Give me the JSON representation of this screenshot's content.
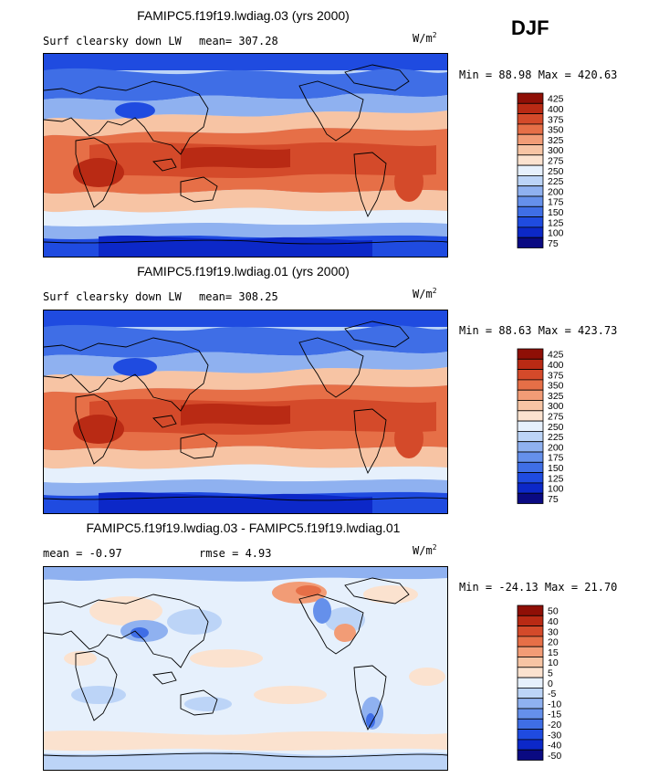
{
  "season": "DJF",
  "panels": [
    {
      "title": "FAMIPC5.f19f19.lwdiag.03 (yrs 2000)",
      "left_label": "Surf clearsky down LW",
      "mean_text": "mean= 307.28",
      "units": "W/m",
      "units_exp": "2",
      "minmax": "Min =  88.98 Max = 420.63"
    },
    {
      "title": "FAMIPC5.f19f19.lwdiag.01 (yrs 2000)",
      "left_label": "Surf clearsky down LW",
      "mean_text": "mean= 308.25",
      "units": "W/m",
      "units_exp": "2",
      "minmax": "Min =  88.63 Max = 423.73"
    },
    {
      "title": "FAMIPC5.f19f19.lwdiag.03 - FAMIPC5.f19f19.lwdiag.01",
      "left_label": "mean =  -0.97",
      "mean_text": "rmse =   4.93",
      "units": "W/m",
      "units_exp": "2",
      "minmax": "Min = -24.13 Max =  21.70"
    }
  ],
  "chart_data": [
    {
      "type": "heatmap",
      "title": "FAMIPC5.f19f19.lwdiag.03 (yrs 2000)",
      "subtitle": "Surf clearsky down LW",
      "units": "W/m2",
      "mean": 307.28,
      "min": 88.98,
      "max": 420.63,
      "colorbar_levels": [
        75,
        100,
        125,
        150,
        175,
        200,
        225,
        250,
        275,
        300,
        325,
        350,
        375,
        400,
        425
      ],
      "colorbar_colors": [
        "#0a0a82",
        "#0c28c8",
        "#1f4be0",
        "#3f6ee6",
        "#6590eb",
        "#8fb1f0",
        "#bcd4f7",
        "#e6f0fc",
        "#fbe2cf",
        "#f7c4a4",
        "#f29c76",
        "#e66f47",
        "#d44a2a",
        "#b92a14",
        "#8f0f06"
      ]
    },
    {
      "type": "heatmap",
      "title": "FAMIPC5.f19f19.lwdiag.01 (yrs 2000)",
      "subtitle": "Surf clearsky down LW",
      "units": "W/m2",
      "mean": 308.25,
      "min": 88.63,
      "max": 423.73,
      "colorbar_levels": [
        75,
        100,
        125,
        150,
        175,
        200,
        225,
        250,
        275,
        300,
        325,
        350,
        375,
        400,
        425
      ],
      "colorbar_colors": [
        "#0a0a82",
        "#0c28c8",
        "#1f4be0",
        "#3f6ee6",
        "#6590eb",
        "#8fb1f0",
        "#bcd4f7",
        "#e6f0fc",
        "#fbe2cf",
        "#f7c4a4",
        "#f29c76",
        "#e66f47",
        "#d44a2a",
        "#b92a14",
        "#8f0f06"
      ]
    },
    {
      "type": "heatmap",
      "title": "FAMIPC5.f19f19.lwdiag.03 - FAMIPC5.f19f19.lwdiag.01",
      "units": "W/m2",
      "mean": -0.97,
      "rmse": 4.93,
      "min": -24.13,
      "max": 21.7,
      "colorbar_levels": [
        -50,
        -40,
        -30,
        -20,
        -15,
        -10,
        -5,
        0,
        5,
        10,
        15,
        20,
        30,
        40,
        50
      ],
      "colorbar_colors": [
        "#0a0a82",
        "#0c28c8",
        "#1f4be0",
        "#3f6ee6",
        "#6590eb",
        "#8fb1f0",
        "#bcd4f7",
        "#e6f0fc",
        "#fbe2cf",
        "#f7c4a4",
        "#f29c76",
        "#e66f47",
        "#d44a2a",
        "#b92a14",
        "#8f0f06"
      ]
    }
  ]
}
